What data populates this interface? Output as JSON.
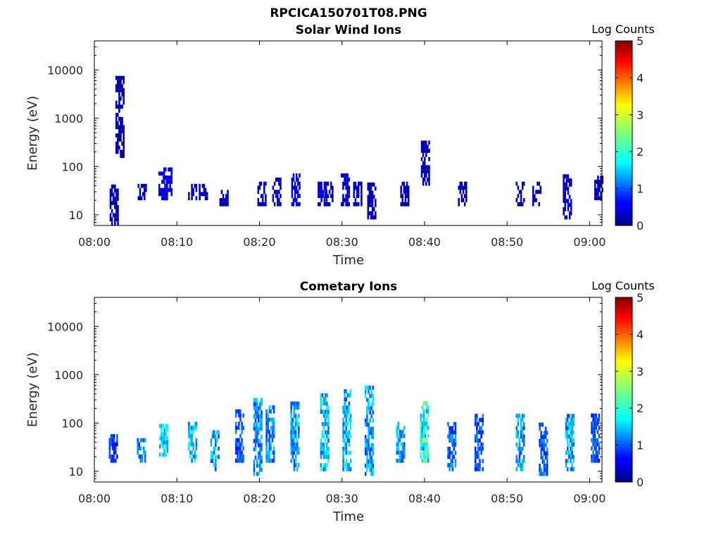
{
  "figure": {
    "title": "RPCICA150701T08.PNG"
  },
  "colorbar": {
    "title": "Log Counts",
    "ticks": [
      "0",
      "1",
      "2",
      "3",
      "4",
      "5"
    ],
    "range": [
      0,
      5
    ],
    "colormap": "jet"
  },
  "chart_data": [
    {
      "type": "heatmap",
      "title": "Solar Wind Ions",
      "xlabel": "Time",
      "ylabel": "Energy (eV)",
      "x_ticks": [
        "08:00",
        "08:10",
        "08:20",
        "08:30",
        "08:40",
        "08:50",
        "09:00"
      ],
      "y_ticks": [
        "10",
        "100",
        "1000",
        "10000"
      ],
      "xlim_minutes": [
        0,
        61.5
      ],
      "ylim_eV": [
        6,
        40000
      ],
      "y_scale": "log",
      "color_range": [
        0,
        5
      ],
      "description_data": [
        {
          "t": 2.3,
          "emin": 6,
          "emax": 40,
          "level": 0.3
        },
        {
          "t": 3.0,
          "emin": 150,
          "emax": 7000,
          "level": 0.2
        },
        {
          "t": 5.7,
          "emin": 20,
          "emax": 40,
          "level": 0.3
        },
        {
          "t": 8.2,
          "emin": 20,
          "emax": 70,
          "level": 0.5
        },
        {
          "t": 8.8,
          "emin": 20,
          "emax": 80,
          "level": 0.6
        },
        {
          "t": 11.8,
          "emin": 20,
          "emax": 40,
          "level": 0.3
        },
        {
          "t": 13.1,
          "emin": 20,
          "emax": 40,
          "level": 0.3
        },
        {
          "t": 15.6,
          "emin": 15,
          "emax": 30,
          "level": 0.3
        },
        {
          "t": 20.2,
          "emin": 15,
          "emax": 40,
          "level": 0.3
        },
        {
          "t": 22.0,
          "emin": 15,
          "emax": 50,
          "level": 0.4
        },
        {
          "t": 24.3,
          "emin": 15,
          "emax": 60,
          "level": 0.5
        },
        {
          "t": 27.5,
          "emin": 15,
          "emax": 40,
          "level": 0.5
        },
        {
          "t": 28.3,
          "emin": 15,
          "emax": 40,
          "level": 0.4
        },
        {
          "t": 30.3,
          "emin": 15,
          "emax": 60,
          "level": 0.4
        },
        {
          "t": 31.8,
          "emin": 15,
          "emax": 40,
          "level": 0.3
        },
        {
          "t": 33.5,
          "emin": 8,
          "emax": 40,
          "level": 0.3
        },
        {
          "t": 37.5,
          "emin": 15,
          "emax": 40,
          "level": 0.3
        },
        {
          "t": 40.0,
          "emin": 40,
          "emax": 300,
          "level": 0.3
        },
        {
          "t": 44.5,
          "emin": 15,
          "emax": 40,
          "level": 0.3
        },
        {
          "t": 51.5,
          "emin": 15,
          "emax": 40,
          "level": 0.3
        },
        {
          "t": 53.5,
          "emin": 15,
          "emax": 40,
          "level": 0.3
        },
        {
          "t": 57.2,
          "emin": 8,
          "emax": 60,
          "level": 0.4
        },
        {
          "t": 61.0,
          "emin": 20,
          "emax": 60,
          "level": 0.3
        }
      ]
    },
    {
      "type": "heatmap",
      "title": "Cometary Ions",
      "xlabel": "Time",
      "ylabel": "Energy (eV)",
      "x_ticks": [
        "08:00",
        "08:10",
        "08:20",
        "08:30",
        "08:40",
        "08:50",
        "09:00"
      ],
      "y_ticks": [
        "10",
        "100",
        "1000",
        "10000"
      ],
      "xlim_minutes": [
        0,
        61.5
      ],
      "ylim_eV": [
        6,
        40000
      ],
      "y_scale": "log",
      "color_range": [
        0,
        5
      ],
      "description_data": [
        {
          "t": 2.2,
          "emin": 15,
          "emax": 50,
          "level": 1.0
        },
        {
          "t": 5.6,
          "emin": 15,
          "emax": 40,
          "level": 1.4
        },
        {
          "t": 8.3,
          "emin": 20,
          "emax": 80,
          "level": 1.9
        },
        {
          "t": 11.8,
          "emin": 15,
          "emax": 90,
          "level": 1.8
        },
        {
          "t": 14.5,
          "emin": 10,
          "emax": 60,
          "level": 1.7
        },
        {
          "t": 17.5,
          "emin": 15,
          "emax": 180,
          "level": 1.2
        },
        {
          "t": 19.7,
          "emin": 8,
          "emax": 300,
          "level": 1.5
        },
        {
          "t": 21.2,
          "emin": 15,
          "emax": 200,
          "level": 1.5
        },
        {
          "t": 24.2,
          "emin": 10,
          "emax": 250,
          "level": 1.6
        },
        {
          "t": 27.8,
          "emin": 10,
          "emax": 400,
          "level": 1.9
        },
        {
          "t": 30.5,
          "emin": 10,
          "emax": 500,
          "level": 1.8
        },
        {
          "t": 33.2,
          "emin": 8,
          "emax": 500,
          "level": 1.6
        },
        {
          "t": 37.0,
          "emin": 15,
          "emax": 90,
          "level": 1.6
        },
        {
          "t": 39.9,
          "emin": 15,
          "emax": 250,
          "level": 2.3
        },
        {
          "t": 43.2,
          "emin": 10,
          "emax": 100,
          "level": 1.3
        },
        {
          "t": 46.5,
          "emin": 10,
          "emax": 150,
          "level": 1.2
        },
        {
          "t": 51.5,
          "emin": 10,
          "emax": 150,
          "level": 1.6
        },
        {
          "t": 54.3,
          "emin": 8,
          "emax": 100,
          "level": 1.3
        },
        {
          "t": 57.5,
          "emin": 10,
          "emax": 150,
          "level": 1.7
        },
        {
          "t": 60.6,
          "emin": 15,
          "emax": 150,
          "level": 1.2
        }
      ]
    }
  ]
}
